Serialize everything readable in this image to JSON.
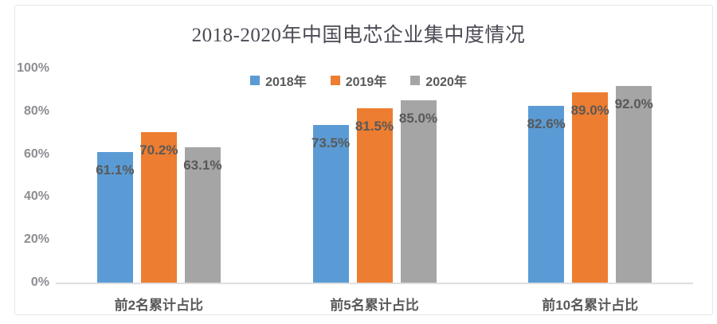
{
  "chart_data": {
    "type": "bar",
    "title": "2018-2020年中国电芯企业集中度情况",
    "categories": [
      "前2名累计占比",
      "前5名累计占比",
      "前10名累计占比"
    ],
    "series": [
      {
        "name": "2018年",
        "color": "#5B9BD5",
        "values": [
          61.1,
          73.5,
          82.6
        ],
        "labels": [
          "61.1%",
          "73.5%",
          "82.6%"
        ]
      },
      {
        "name": "2019年",
        "color": "#ED7D31",
        "values": [
          70.2,
          81.5,
          89.0
        ],
        "labels": [
          "70.2%",
          "81.5%",
          "89.0%"
        ]
      },
      {
        "name": "2020年",
        "color": "#A5A5A5",
        "values": [
          63.1,
          85.0,
          92.0
        ],
        "labels": [
          "63.1%",
          "85.0%",
          "92.0%"
        ]
      }
    ],
    "y_axis": {
      "min": 0,
      "max": 100,
      "step": 20,
      "ticks": [
        "100%",
        "80%",
        "60%",
        "40%",
        "20%",
        "0%"
      ]
    },
    "xlabel": "",
    "ylabel": "",
    "legend_position": "top-center",
    "grid": false,
    "data_label_position": "inside-end",
    "colors": {
      "title": "#4b4b55",
      "tick_label": "#8d8d93",
      "data_label": "#595959",
      "category_label": "#595959",
      "axis_line": "#dedede",
      "card_border": "#e7e7e9",
      "background": "#ffffff"
    }
  }
}
